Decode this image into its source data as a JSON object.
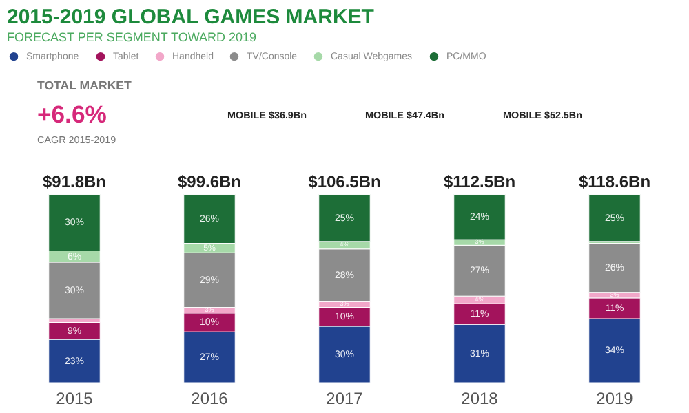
{
  "chart_data": {
    "type": "bar",
    "stacked": true,
    "title": "2015-2019 GLOBAL GAMES MARKET",
    "subtitle": "FORECAST PER SEGMENT TOWARD 2019",
    "categories": [
      "2015",
      "2016",
      "2017",
      "2018",
      "2019"
    ],
    "series": [
      {
        "name": "Smartphone",
        "color": "#21428f",
        "values": [
          23,
          27,
          30,
          31,
          34
        ],
        "value_labels": [
          "23%",
          "27%",
          "30%",
          "31%",
          "34%"
        ]
      },
      {
        "name": "Tablet",
        "color": "#a3135c",
        "values": [
          9,
          10,
          10,
          11,
          11
        ],
        "value_labels": [
          "9%",
          "10%",
          "10%",
          "11%",
          "11%"
        ]
      },
      {
        "name": "Handheld",
        "color": "#f2a7c9",
        "values": [
          2,
          3,
          3,
          4,
          3
        ],
        "value_labels": [
          null,
          "3%",
          "3%",
          "4%",
          "3%"
        ]
      },
      {
        "name": "TV/Console",
        "color": "#8c8c8c",
        "values": [
          30,
          29,
          28,
          27,
          26
        ],
        "value_labels": [
          "30%",
          "29%",
          "28%",
          "27%",
          "26%"
        ]
      },
      {
        "name": "Casual Webgames",
        "color": "#a6d9a8",
        "values": [
          6,
          5,
          4,
          3,
          1
        ],
        "value_labels": [
          "6%",
          "5%",
          "4%",
          "3%",
          null
        ]
      },
      {
        "name": "PC/MMO",
        "color": "#1d6e37",
        "values": [
          30,
          26,
          25,
          24,
          25
        ],
        "value_labels": [
          "30%",
          "26%",
          "25%",
          "24%",
          "25%"
        ]
      }
    ],
    "legend": "top",
    "grid": false,
    "annotations": [
      "TOTAL MARKET",
      "+6.6%",
      "CAGR 2015-2019",
      {
        "text": "$91.8Bn",
        "x": "2015",
        "y": 100
      },
      {
        "text": "$99.6Bn",
        "x": "2016",
        "y": 100
      },
      {
        "text": "$106.5Bn",
        "x": "2017",
        "y": 100
      },
      {
        "text": "$112.5Bn",
        "x": "2018",
        "y": 100
      },
      {
        "text": "$118.6Bn",
        "x": "2019",
        "y": 100
      },
      "MOBILE $36.9Bn",
      "MOBILE $47.4Bn",
      "MOBILE $52.5Bn"
    ]
  }
}
